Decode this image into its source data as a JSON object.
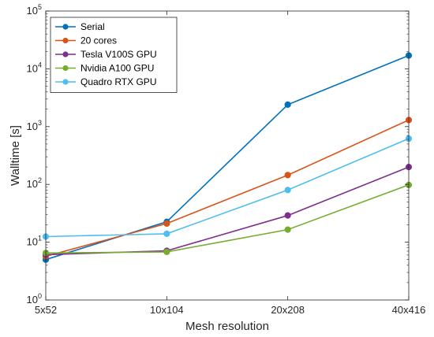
{
  "chart_data": {
    "type": "line",
    "x_scale": "categorical",
    "y_scale": "log",
    "categories": [
      "5x52",
      "10x104",
      "20x208",
      "40x416"
    ],
    "xlabel": "Mesh resolution",
    "ylabel": "Walltime [s]",
    "ylim": [
      1,
      100000
    ],
    "y_ticks": [
      {
        "value": 1,
        "base": "10",
        "exp": "0"
      },
      {
        "value": 10,
        "base": "10",
        "exp": "1"
      },
      {
        "value": 100,
        "base": "10",
        "exp": "2"
      },
      {
        "value": 1000,
        "base": "10",
        "exp": "3"
      },
      {
        "value": 10000,
        "base": "10",
        "exp": "4"
      },
      {
        "value": 100000,
        "base": "10",
        "exp": "5"
      }
    ],
    "grid": false,
    "legend_position": "top-left",
    "series": [
      {
        "name": "Serial",
        "color": "#0072BD",
        "values": [
          5.0,
          22.5,
          2400,
          17000
        ]
      },
      {
        "name": "20 cores",
        "color": "#D95319",
        "values": [
          5.7,
          21.0,
          145,
          1300
        ]
      },
      {
        "name": "Tesla V100S GPU",
        "color": "#7E2F8E",
        "values": [
          6.1,
          7.1,
          29,
          200
        ]
      },
      {
        "name": "Nvidia A100 GPU",
        "color": "#77AC30",
        "values": [
          6.5,
          6.8,
          16.5,
          98
        ]
      },
      {
        "name": "Quadro RTX GPU",
        "color": "#4DBEEE",
        "values": [
          12.5,
          14.0,
          80,
          620
        ]
      }
    ]
  }
}
